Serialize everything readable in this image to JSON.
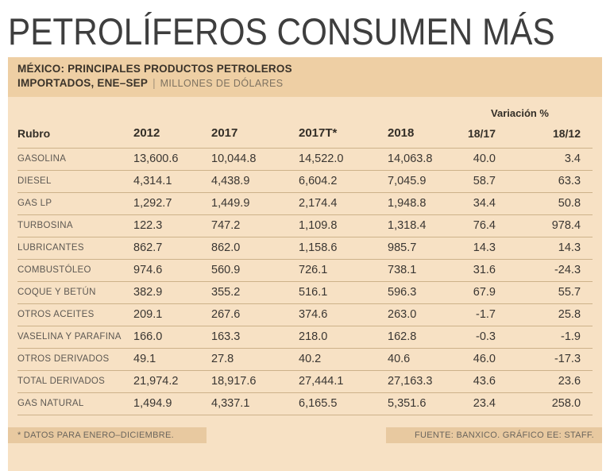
{
  "title": "PETROLÍFEROS CONSUMEN MÁS",
  "panel": {
    "header": {
      "line1": "MÉXICO: PRINCIPALES PRODUCTOS PETROLEROS",
      "line2_bold": "IMPORTADOS, ENE–SEP",
      "separator": "|",
      "units": "MILLONES DE DÓLARES"
    },
    "footer": {
      "left": "* DATOS PARA ENERO–DICIEMBRE.",
      "right": "FUENTE: BANXICO. GRÁFICO EE: STAFF."
    }
  },
  "colors": {
    "panel_bg": "#f7e1c4",
    "band_bg": "#eecfa4",
    "footer_bg": "#e8c9a0",
    "separator_line": "#cdb28a",
    "title_text": "#3e3e3e",
    "value_text": "#3a3632",
    "label_text": "#5d5852"
  },
  "chart_data": {
    "type": "table",
    "title": "MÉXICO: PRINCIPALES PRODUCTOS PETROLEROS IMPORTADOS, ENE–SEP",
    "units": "MILLONES DE DÓLARES",
    "variation_header": "Variación %",
    "columns": [
      "Rubro",
      "2012",
      "2017",
      "2017T*",
      "2018",
      "18/17",
      "18/12"
    ],
    "rows": [
      [
        "GASOLINA",
        "13,600.6",
        "10,044.8",
        "14,522.0",
        "14,063.8",
        "40.0",
        "3.4"
      ],
      [
        "DIESEL",
        "4,314.1",
        "4,438.9",
        "6,604.2",
        "7,045.9",
        "58.7",
        "63.3"
      ],
      [
        "GAS LP",
        "1,292.7",
        "1,449.9",
        "2,174.4",
        "1,948.8",
        "34.4",
        "50.8"
      ],
      [
        "TURBOSINA",
        "122.3",
        "747.2",
        "1,109.8",
        "1,318.4",
        "76.4",
        "978.4"
      ],
      [
        "LUBRICANTES",
        "862.7",
        "862.0",
        "1,158.6",
        "985.7",
        "14.3",
        "14.3"
      ],
      [
        "COMBUSTÓLEO",
        "974.6",
        "560.9",
        "726.1",
        "738.1",
        "31.6",
        "-24.3"
      ],
      [
        "COQUE Y BETÚN",
        "382.9",
        "355.2",
        "516.1",
        "596.3",
        "67.9",
        "55.7"
      ],
      [
        "OTROS ACEITES",
        "209.1",
        "267.6",
        "374.6",
        "263.0",
        "-1.7",
        "25.8"
      ],
      [
        "VASELINA Y PARAFINA",
        "166.0",
        "163.3",
        "218.0",
        "162.8",
        "-0.3",
        "-1.9"
      ],
      [
        "OTROS DERIVADOS",
        "49.1",
        "27.8",
        "40.2",
        "40.6",
        "46.0",
        "-17.3"
      ],
      [
        "TOTAL DERIVADOS",
        "21,974.2",
        "18,917.6",
        "27,444.1",
        "27,163.3",
        "43.6",
        "23.6"
      ],
      [
        "GAS NATURAL",
        "1,494.9",
        "4,337.1",
        "6,165.5",
        "5,351.6",
        "23.4",
        "258.0"
      ]
    ],
    "footnote": "* DATOS PARA ENERO–DICIEMBRE.",
    "source": "FUENTE: BANXICO. GRÁFICO EE: STAFF."
  }
}
